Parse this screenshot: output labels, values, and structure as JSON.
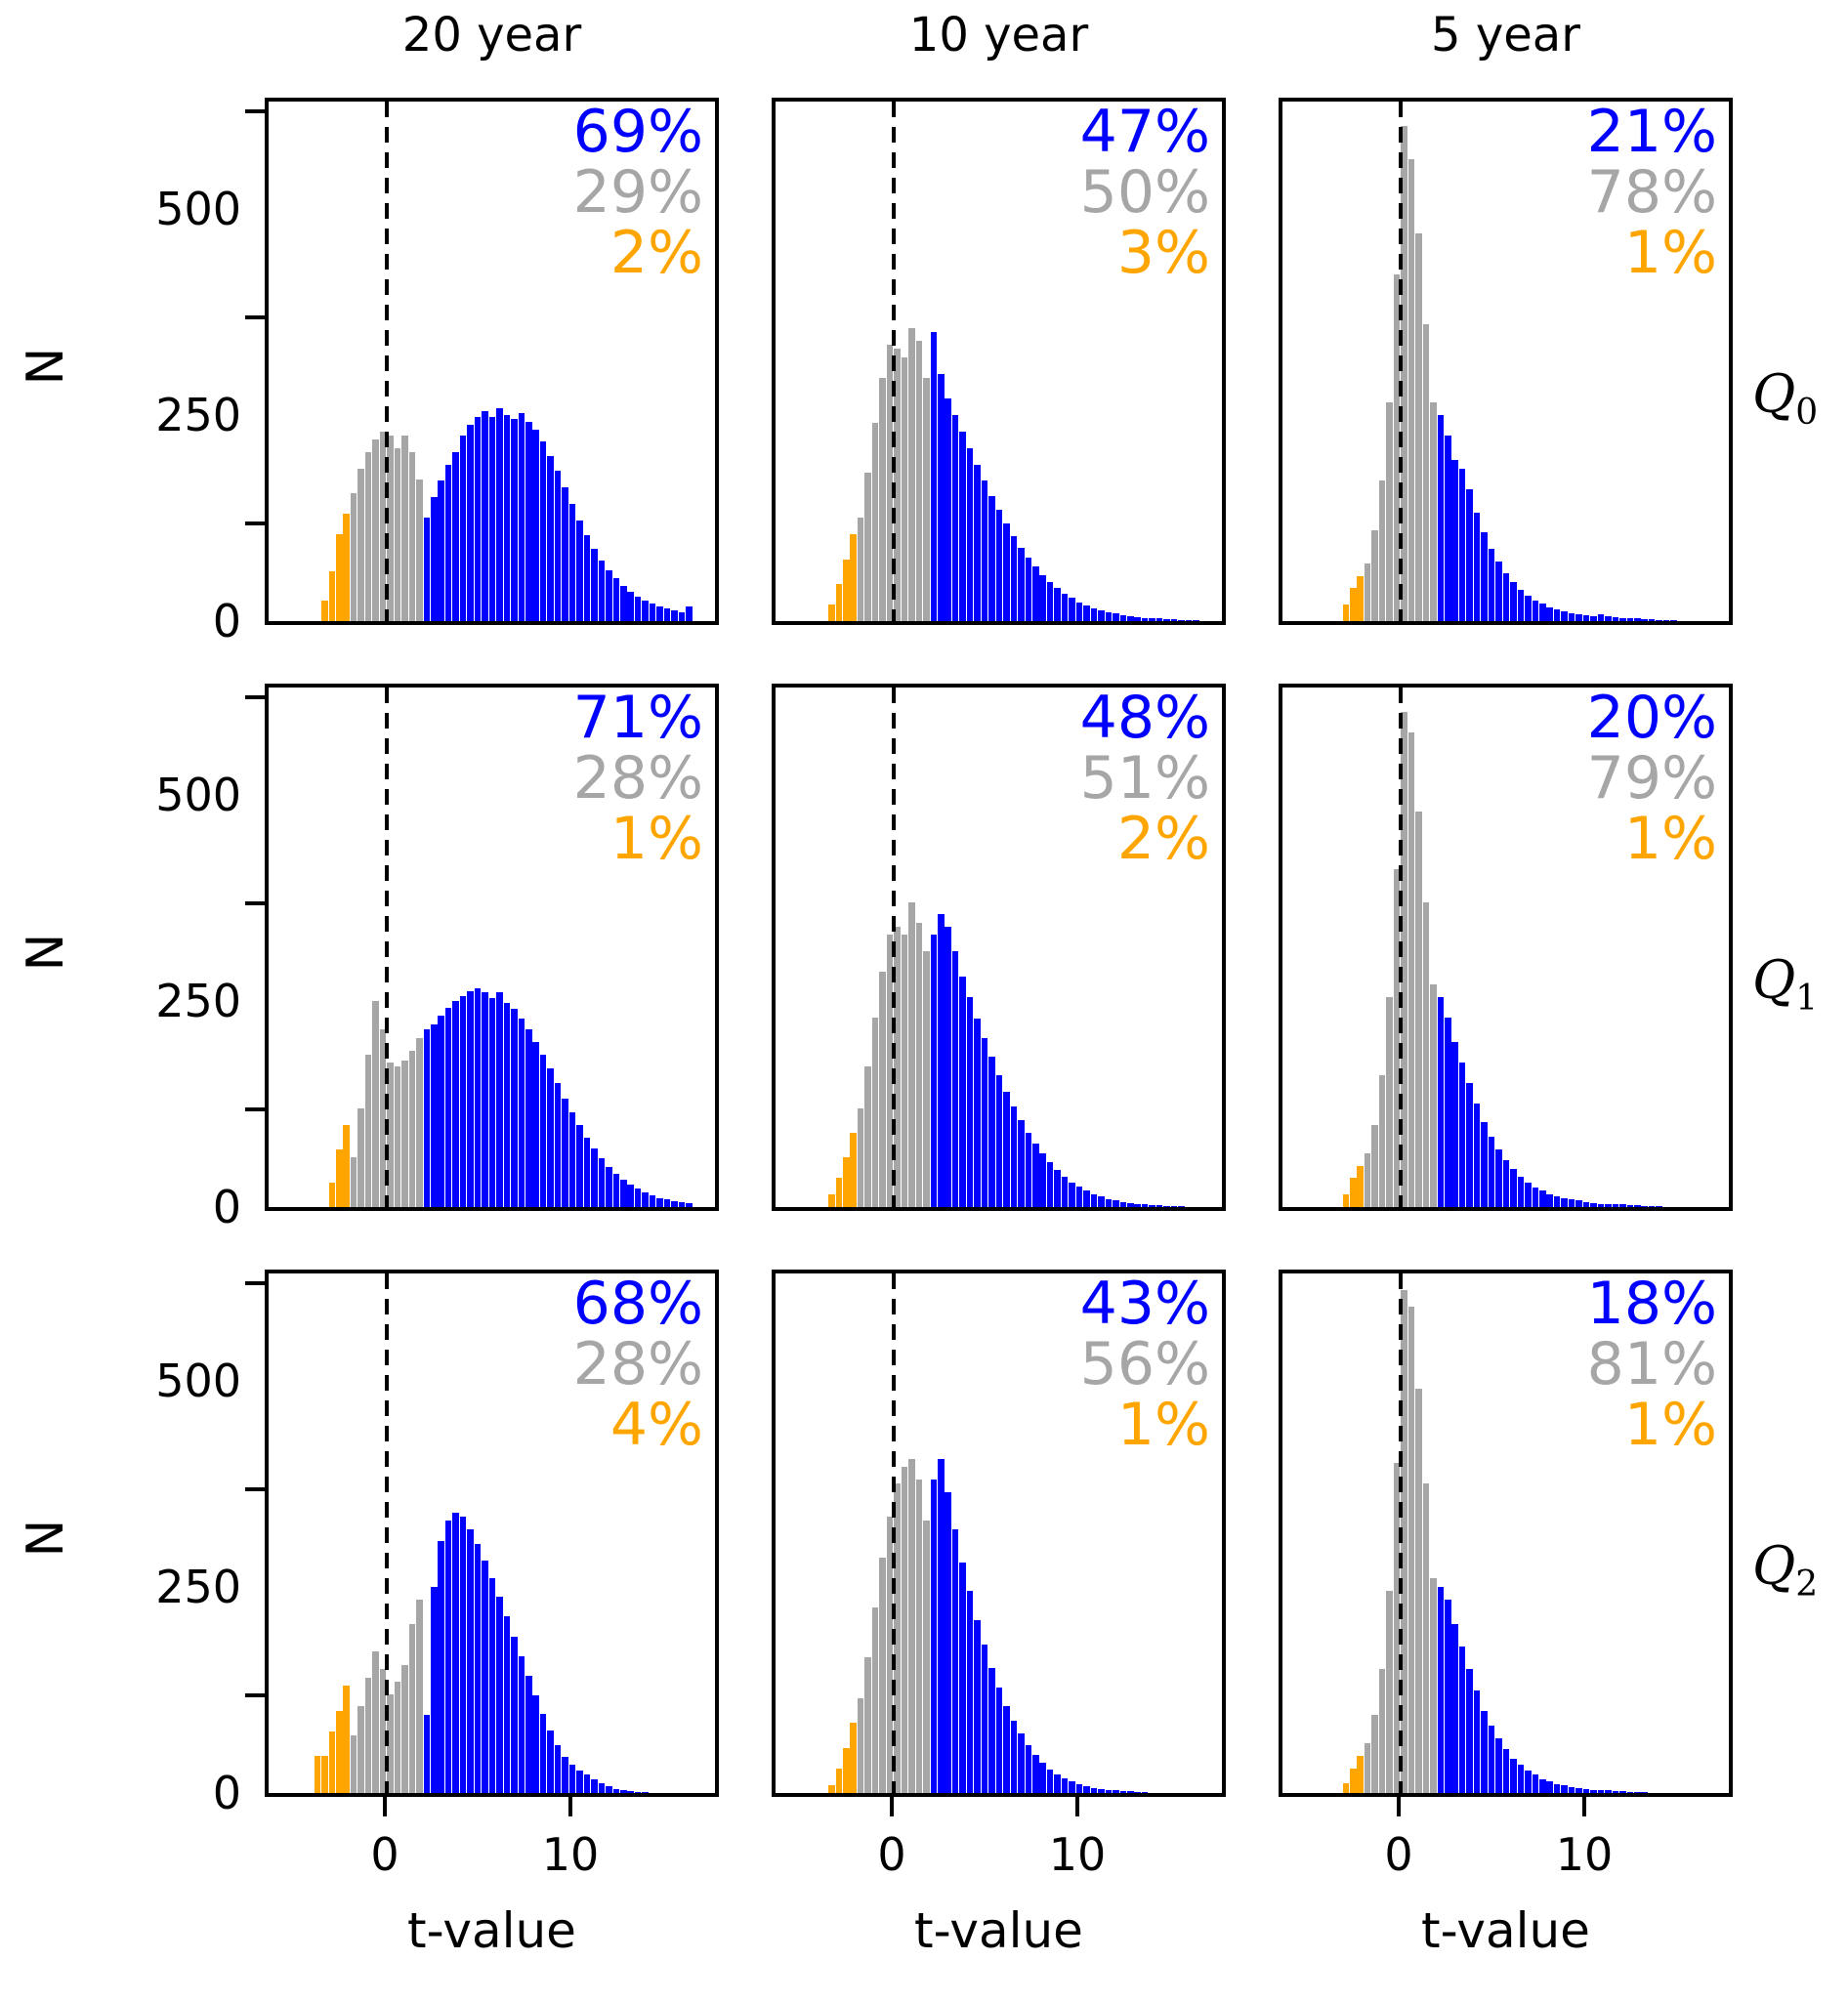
{
  "figure": {
    "col_titles": [
      "20 year",
      "10 year",
      "5 year"
    ]
  },
  "rows": [
    {
      "label": "Q",
      "subscript": "0"
    },
    {
      "label": "Q",
      "subscript": "1"
    },
    {
      "label": "Q",
      "subscript": "2"
    }
  ],
  "axes": {
    "xlabel": "t-value",
    "ylabel": "N",
    "x_tick_labels": [
      "0",
      "10"
    ],
    "x_tick_values": [
      0,
      10
    ],
    "y_tick_labels": [
      "0",
      "250",
      "500"
    ],
    "y_tick_values": [
      0,
      250,
      500
    ],
    "x_range": [
      -6.5,
      18
    ],
    "y_range": [
      0,
      630
    ],
    "dashed_line_x": 0,
    "color_rule": {
      "orange_below": -2,
      "blue_from": 2
    }
  },
  "colors": {
    "blue": "#0000ff",
    "gray": "#a6a6a6",
    "orange": "#ffa500"
  },
  "chart_data": [
    {
      "type": "bar",
      "subtype": "histogram",
      "quantile": "Q0",
      "period": "20 year",
      "percent_blue": "69%",
      "percent_gray": "29%",
      "percent_orange": "2%",
      "bin_start": -4.0,
      "bin_width": 0.4,
      "heights": [
        0,
        25,
        60,
        105,
        130,
        155,
        185,
        205,
        220,
        230,
        225,
        210,
        225,
        205,
        172,
        125,
        150,
        170,
        190,
        205,
        225,
        238,
        248,
        255,
        248,
        258,
        250,
        245,
        252,
        242,
        232,
        218,
        200,
        182,
        162,
        142,
        122,
        104,
        88,
        74,
        62,
        52,
        43,
        36,
        30,
        25,
        21,
        18,
        15,
        13,
        11,
        18
      ]
    },
    {
      "type": "bar",
      "subtype": "histogram",
      "quantile": "Q0",
      "period": "10 year",
      "percent_blue": "47%",
      "percent_gray": "50%",
      "percent_orange": "3%",
      "bin_start": -4.0,
      "bin_width": 0.4,
      "heights": [
        0,
        20,
        45,
        75,
        105,
        125,
        180,
        240,
        295,
        335,
        330,
        320,
        355,
        340,
        295,
        350,
        300,
        270,
        250,
        230,
        210,
        190,
        170,
        152,
        135,
        118,
        103,
        89,
        77,
        66,
        56,
        47,
        40,
        33,
        28,
        23,
        19,
        16,
        13,
        11,
        9,
        7,
        6,
        5,
        4,
        3,
        3,
        2,
        2,
        1,
        1,
        1
      ]
    },
    {
      "type": "bar",
      "subtype": "histogram",
      "quantile": "Q0",
      "period": "5 year",
      "percent_blue": "21%",
      "percent_gray": "78%",
      "percent_orange": "1%",
      "bin_start": -4.0,
      "bin_width": 0.4,
      "heights": [
        0,
        0,
        20,
        40,
        55,
        70,
        110,
        170,
        265,
        420,
        600,
        560,
        470,
        360,
        265,
        250,
        225,
        195,
        185,
        160,
        132,
        108,
        88,
        72,
        58,
        47,
        38,
        31,
        25,
        21,
        17,
        14,
        12,
        10,
        8,
        7,
        6,
        8,
        6,
        5,
        4,
        3,
        3,
        2,
        2,
        1,
        1,
        1,
        0,
        0,
        0,
        0
      ]
    },
    {
      "type": "bar",
      "subtype": "histogram",
      "quantile": "Q1",
      "period": "20 year",
      "percent_blue": "71%",
      "percent_gray": "28%",
      "percent_orange": "1%",
      "bin_start": -4.0,
      "bin_width": 0.4,
      "heights": [
        0,
        0,
        30,
        70,
        100,
        60,
        120,
        185,
        250,
        215,
        175,
        170,
        178,
        190,
        205,
        215,
        222,
        232,
        242,
        250,
        256,
        262,
        265,
        260,
        254,
        260,
        248,
        240,
        228,
        215,
        200,
        185,
        168,
        150,
        132,
        115,
        99,
        84,
        71,
        59,
        49,
        40,
        33,
        27,
        22,
        18,
        14,
        11,
        9,
        7,
        6,
        5
      ]
    },
    {
      "type": "bar",
      "subtype": "histogram",
      "quantile": "Q1",
      "period": "10 year",
      "percent_blue": "48%",
      "percent_gray": "51%",
      "percent_orange": "2%",
      "bin_start": -4.0,
      "bin_width": 0.4,
      "heights": [
        0,
        15,
        35,
        60,
        90,
        120,
        170,
        230,
        285,
        330,
        340,
        330,
        370,
        345,
        310,
        330,
        355,
        340,
        310,
        280,
        255,
        228,
        205,
        182,
        160,
        140,
        122,
        105,
        90,
        77,
        65,
        54,
        45,
        37,
        30,
        25,
        20,
        16,
        13,
        10,
        8,
        6,
        5,
        4,
        3,
        2,
        2,
        1,
        1,
        1,
        0,
        0
      ]
    },
    {
      "type": "bar",
      "subtype": "histogram",
      "quantile": "Q1",
      "period": "5 year",
      "percent_blue": "20%",
      "percent_gray": "79%",
      "percent_orange": "1%",
      "bin_start": -4.0,
      "bin_width": 0.4,
      "heights": [
        0,
        0,
        15,
        35,
        50,
        65,
        100,
        160,
        255,
        410,
        600,
        575,
        480,
        370,
        270,
        255,
        230,
        200,
        175,
        150,
        125,
        103,
        85,
        70,
        57,
        46,
        37,
        30,
        24,
        20,
        16,
        13,
        11,
        9,
        8,
        6,
        5,
        4,
        4,
        3,
        3,
        2,
        2,
        1,
        1,
        1,
        0,
        0,
        0,
        0,
        0,
        0
      ]
    },
    {
      "type": "bar",
      "subtype": "histogram",
      "quantile": "Q2",
      "period": "20 year",
      "percent_blue": "68%",
      "percent_gray": "28%",
      "percent_orange": "4%",
      "bin_start": -4.0,
      "bin_width": 0.4,
      "heights": [
        45,
        45,
        75,
        100,
        130,
        70,
        105,
        140,
        172,
        150,
        120,
        135,
        155,
        205,
        235,
        95,
        250,
        305,
        330,
        340,
        335,
        320,
        302,
        282,
        260,
        238,
        214,
        190,
        166,
        142,
        118,
        96,
        76,
        58,
        44,
        34,
        27,
        22,
        17,
        12,
        8,
        5,
        3,
        2,
        1,
        1,
        0,
        0,
        0,
        0,
        0,
        0
      ]
    },
    {
      "type": "bar",
      "subtype": "histogram",
      "quantile": "Q2",
      "period": "10 year",
      "percent_blue": "43%",
      "percent_gray": "56%",
      "percent_orange": "1%",
      "bin_start": -4.0,
      "bin_width": 0.4,
      "heights": [
        0,
        10,
        30,
        55,
        85,
        115,
        165,
        225,
        285,
        335,
        375,
        395,
        405,
        380,
        330,
        380,
        405,
        365,
        320,
        280,
        245,
        210,
        180,
        152,
        128,
        106,
        88,
        72,
        58,
        46,
        37,
        29,
        23,
        18,
        14,
        11,
        8,
        6,
        5,
        4,
        3,
        2,
        2,
        1,
        1,
        0,
        0,
        0,
        0,
        0,
        0,
        0
      ]
    },
    {
      "type": "bar",
      "subtype": "histogram",
      "quantile": "Q2",
      "period": "5 year",
      "percent_blue": "18%",
      "percent_gray": "81%",
      "percent_orange": "1%",
      "bin_start": -4.0,
      "bin_width": 0.4,
      "heights": [
        0,
        0,
        12,
        30,
        45,
        60,
        95,
        150,
        245,
        400,
        610,
        590,
        490,
        375,
        260,
        250,
        235,
        205,
        178,
        150,
        124,
        100,
        82,
        66,
        53,
        42,
        34,
        27,
        22,
        17,
        14,
        11,
        9,
        7,
        6,
        5,
        4,
        3,
        3,
        2,
        2,
        1,
        1,
        1,
        0,
        0,
        0,
        0,
        0,
        0,
        0,
        0
      ]
    }
  ]
}
